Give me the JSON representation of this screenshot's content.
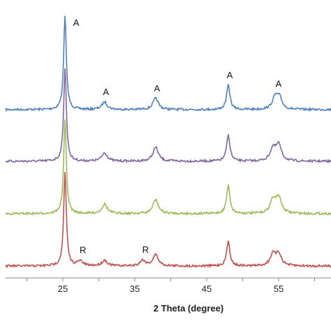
{
  "chart_data": {
    "type": "line",
    "title": "",
    "xlabel": "2 Theta (degree)",
    "ylabel": "",
    "xlim": [
      15,
      62
    ],
    "xticks": [
      25,
      35,
      45,
      55
    ],
    "grid": false,
    "legend": "none",
    "series": [
      {
        "color": "#4f81bd",
        "offset": 3,
        "peaks": [
          [
            25.3,
            1.0
          ],
          [
            30.8,
            0.08
          ],
          [
            37.9,
            0.12
          ],
          [
            48.0,
            0.26
          ],
          [
            54.5,
            0.12
          ],
          [
            55.1,
            0.12
          ]
        ]
      },
      {
        "color": "#8064a2",
        "offset": 2,
        "peaks": [
          [
            25.3,
            1.0
          ],
          [
            30.8,
            0.09
          ],
          [
            37.9,
            0.15
          ],
          [
            48.0,
            0.28
          ],
          [
            54.2,
            0.13
          ],
          [
            55.0,
            0.17
          ]
        ]
      },
      {
        "color": "#9bbb59",
        "offset": 1,
        "peaks": [
          [
            25.3,
            1.0
          ],
          [
            30.8,
            0.1
          ],
          [
            37.9,
            0.15
          ],
          [
            48.0,
            0.3
          ],
          [
            54.2,
            0.14
          ],
          [
            55.0,
            0.17
          ]
        ]
      },
      {
        "color": "#c0504d",
        "offset": 0,
        "peaks": [
          [
            25.3,
            1.0
          ],
          [
            27.4,
            0.05
          ],
          [
            30.8,
            0.06
          ],
          [
            36.1,
            0.06
          ],
          [
            37.9,
            0.12
          ],
          [
            48.0,
            0.26
          ],
          [
            54.2,
            0.12
          ],
          [
            55.0,
            0.13
          ]
        ]
      }
    ],
    "annotations": [
      {
        "text": "A",
        "x": 25.3,
        "series": 0
      },
      {
        "text": "A",
        "x": 30.8,
        "series": 0
      },
      {
        "text": "A",
        "x": 37.9,
        "series": 0
      },
      {
        "text": "A",
        "x": 48.0,
        "series": 0
      },
      {
        "text": "A",
        "x": 54.8,
        "series": 0
      },
      {
        "text": "R",
        "x": 27.4,
        "series": 3
      },
      {
        "text": "R",
        "x": 36.1,
        "series": 3
      }
    ]
  }
}
